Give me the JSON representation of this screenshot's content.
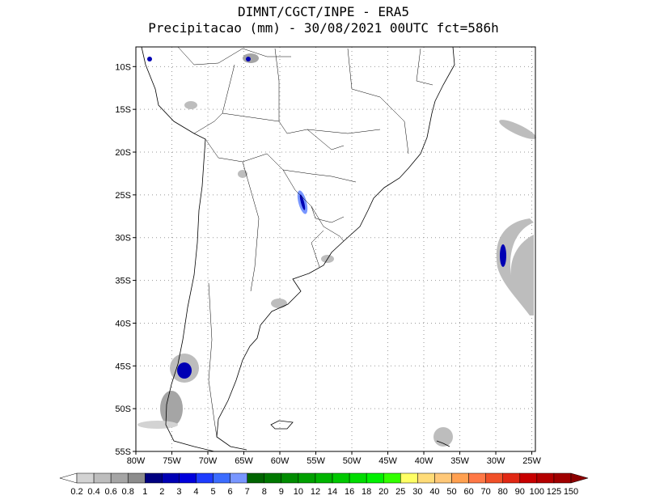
{
  "header": {
    "line1": "DIMNT/CGCT/INPE -  ERA5",
    "line2": "Precipitacao (mm) - 30/08/2021 00UTC fct=586h"
  },
  "map": {
    "lonlim": [
      -80,
      -24.5
    ],
    "latlim": [
      -55,
      -7.7
    ],
    "lon_ticks": [
      {
        "value": -80,
        "label": "80W"
      },
      {
        "value": -75,
        "label": "75W"
      },
      {
        "value": -70,
        "label": "70W"
      },
      {
        "value": -65,
        "label": "65W"
      },
      {
        "value": -60,
        "label": "60W"
      },
      {
        "value": -55,
        "label": "55W"
      },
      {
        "value": -50,
        "label": "50W"
      },
      {
        "value": -45,
        "label": "45W"
      },
      {
        "value": -40,
        "label": "40W"
      },
      {
        "value": -35,
        "label": "35W"
      },
      {
        "value": -30,
        "label": "30W"
      },
      {
        "value": -25,
        "label": "25W"
      }
    ],
    "lat_ticks": [
      {
        "value": -10,
        "label": "10S"
      },
      {
        "value": -15,
        "label": "15S"
      },
      {
        "value": -20,
        "label": "20S"
      },
      {
        "value": -25,
        "label": "25S"
      },
      {
        "value": -30,
        "label": "30S"
      },
      {
        "value": -35,
        "label": "35S"
      },
      {
        "value": -40,
        "label": "40S"
      },
      {
        "value": -45,
        "label": "45S"
      },
      {
        "value": -50,
        "label": "50S"
      },
      {
        "value": -55,
        "label": "55S"
      }
    ]
  },
  "colorbar": {
    "levels": [
      0.2,
      0.4,
      0.6,
      0.8,
      1,
      2,
      3,
      4,
      5,
      6,
      7,
      8,
      9,
      10,
      12,
      14,
      16,
      18,
      20,
      25,
      30,
      40,
      50,
      60,
      70,
      80,
      90,
      100,
      125,
      150
    ],
    "colors": [
      "#ffffff",
      "#d3d3d3",
      "#bdbdbd",
      "#a5a5a5",
      "#8c8c8c",
      "#000080",
      "#0000b4",
      "#0000dc",
      "#1e3cff",
      "#3c6cff",
      "#7896ff",
      "#006400",
      "#007800",
      "#008c00",
      "#00a000",
      "#00b400",
      "#00c800",
      "#00dc00",
      "#00f000",
      "#32ff00",
      "#ffff64",
      "#ffdc78",
      "#ffc878",
      "#ffa050",
      "#ff7846",
      "#f05028",
      "#e12814",
      "#c80000",
      "#b40000",
      "#a00000",
      "#8c0000"
    ]
  }
}
